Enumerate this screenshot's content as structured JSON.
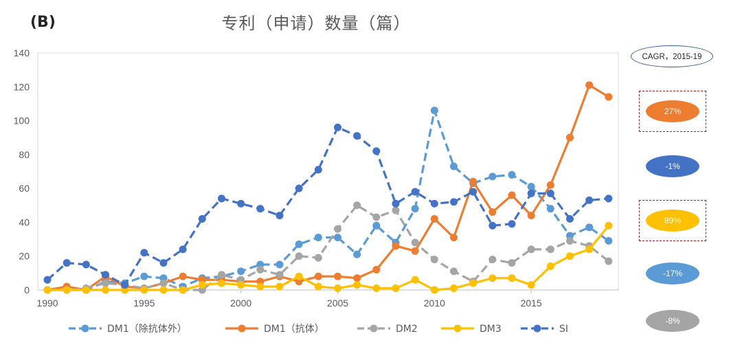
{
  "panel_label": "(B)",
  "chart_data": {
    "type": "line",
    "title": "专利（申请）数量（篇）",
    "x": [
      1990,
      1991,
      1992,
      1993,
      1994,
      1995,
      1996,
      1997,
      1998,
      1999,
      2000,
      2001,
      2002,
      2003,
      2004,
      2005,
      2006,
      2007,
      2008,
      2009,
      2010,
      2011,
      2012,
      2013,
      2014,
      2015,
      2016,
      2017,
      2018,
      2019
    ],
    "x_ticks": [
      1990,
      1995,
      2000,
      2005,
      2010,
      2015
    ],
    "y_ticks": [
      0,
      20,
      40,
      60,
      80,
      100,
      120,
      140
    ],
    "ylim": [
      0,
      140
    ],
    "xlim": [
      1990,
      2020
    ],
    "grid": "none",
    "legend_position": "bottom",
    "series": [
      {
        "name": "DM1（除抗体外）",
        "color": "#5b9bd5",
        "dashed": true,
        "values": [
          0,
          0,
          0,
          5,
          4,
          8,
          7,
          2,
          7,
          8,
          11,
          15,
          15,
          27,
          31,
          31,
          21,
          38,
          28,
          48,
          106,
          73,
          63,
          67,
          68,
          61,
          48,
          32,
          37,
          29
        ]
      },
      {
        "name": "DM1（抗体）",
        "color": "#ed7d31",
        "dashed": false,
        "values": [
          0,
          2,
          0,
          8,
          2,
          1,
          4,
          8,
          6,
          6,
          5,
          5,
          8,
          5,
          8,
          8,
          7,
          12,
          26,
          23,
          42,
          31,
          64,
          46,
          56,
          44,
          62,
          90,
          121,
          114
        ]
      },
      {
        "name": "DM2",
        "color": "#a5a5a5",
        "dashed": true,
        "values": [
          0,
          0,
          1,
          4,
          3,
          1,
          4,
          0,
          0,
          9,
          6,
          12,
          9,
          20,
          19,
          36,
          50,
          43,
          47,
          28,
          18,
          11,
          5,
          18,
          16,
          24,
          24,
          29,
          26,
          17
        ]
      },
      {
        "name": "DM3",
        "color": "#ffc000",
        "dashed": false,
        "values": [
          0,
          0,
          0,
          0,
          0,
          0,
          0,
          0,
          3,
          4,
          3,
          2,
          2,
          8,
          2,
          1,
          3,
          1,
          1,
          6,
          0,
          1,
          4,
          7,
          7,
          3,
          14,
          20,
          24,
          38
        ]
      },
      {
        "name": "SI",
        "color": "#4472c4",
        "dashed": true,
        "values": [
          6,
          16,
          15,
          9,
          3,
          22,
          16,
          24,
          42,
          54,
          51,
          48,
          44,
          60,
          71,
          96,
          91,
          82,
          51,
          58,
          51,
          52,
          58,
          38,
          39,
          57,
          57,
          42,
          53,
          54
        ]
      }
    ]
  },
  "cagr": {
    "label": "CAGR，2015-19",
    "items": [
      {
        "value": "27%",
        "color": "#ed7d31"
      },
      {
        "value": "-1%",
        "color": "#4472c4"
      },
      {
        "value": "89%",
        "color": "#ffc000"
      },
      {
        "value": "-17%",
        "color": "#5b9bd5"
      },
      {
        "value": "-8%",
        "color": "#a5a5a5"
      }
    ]
  }
}
